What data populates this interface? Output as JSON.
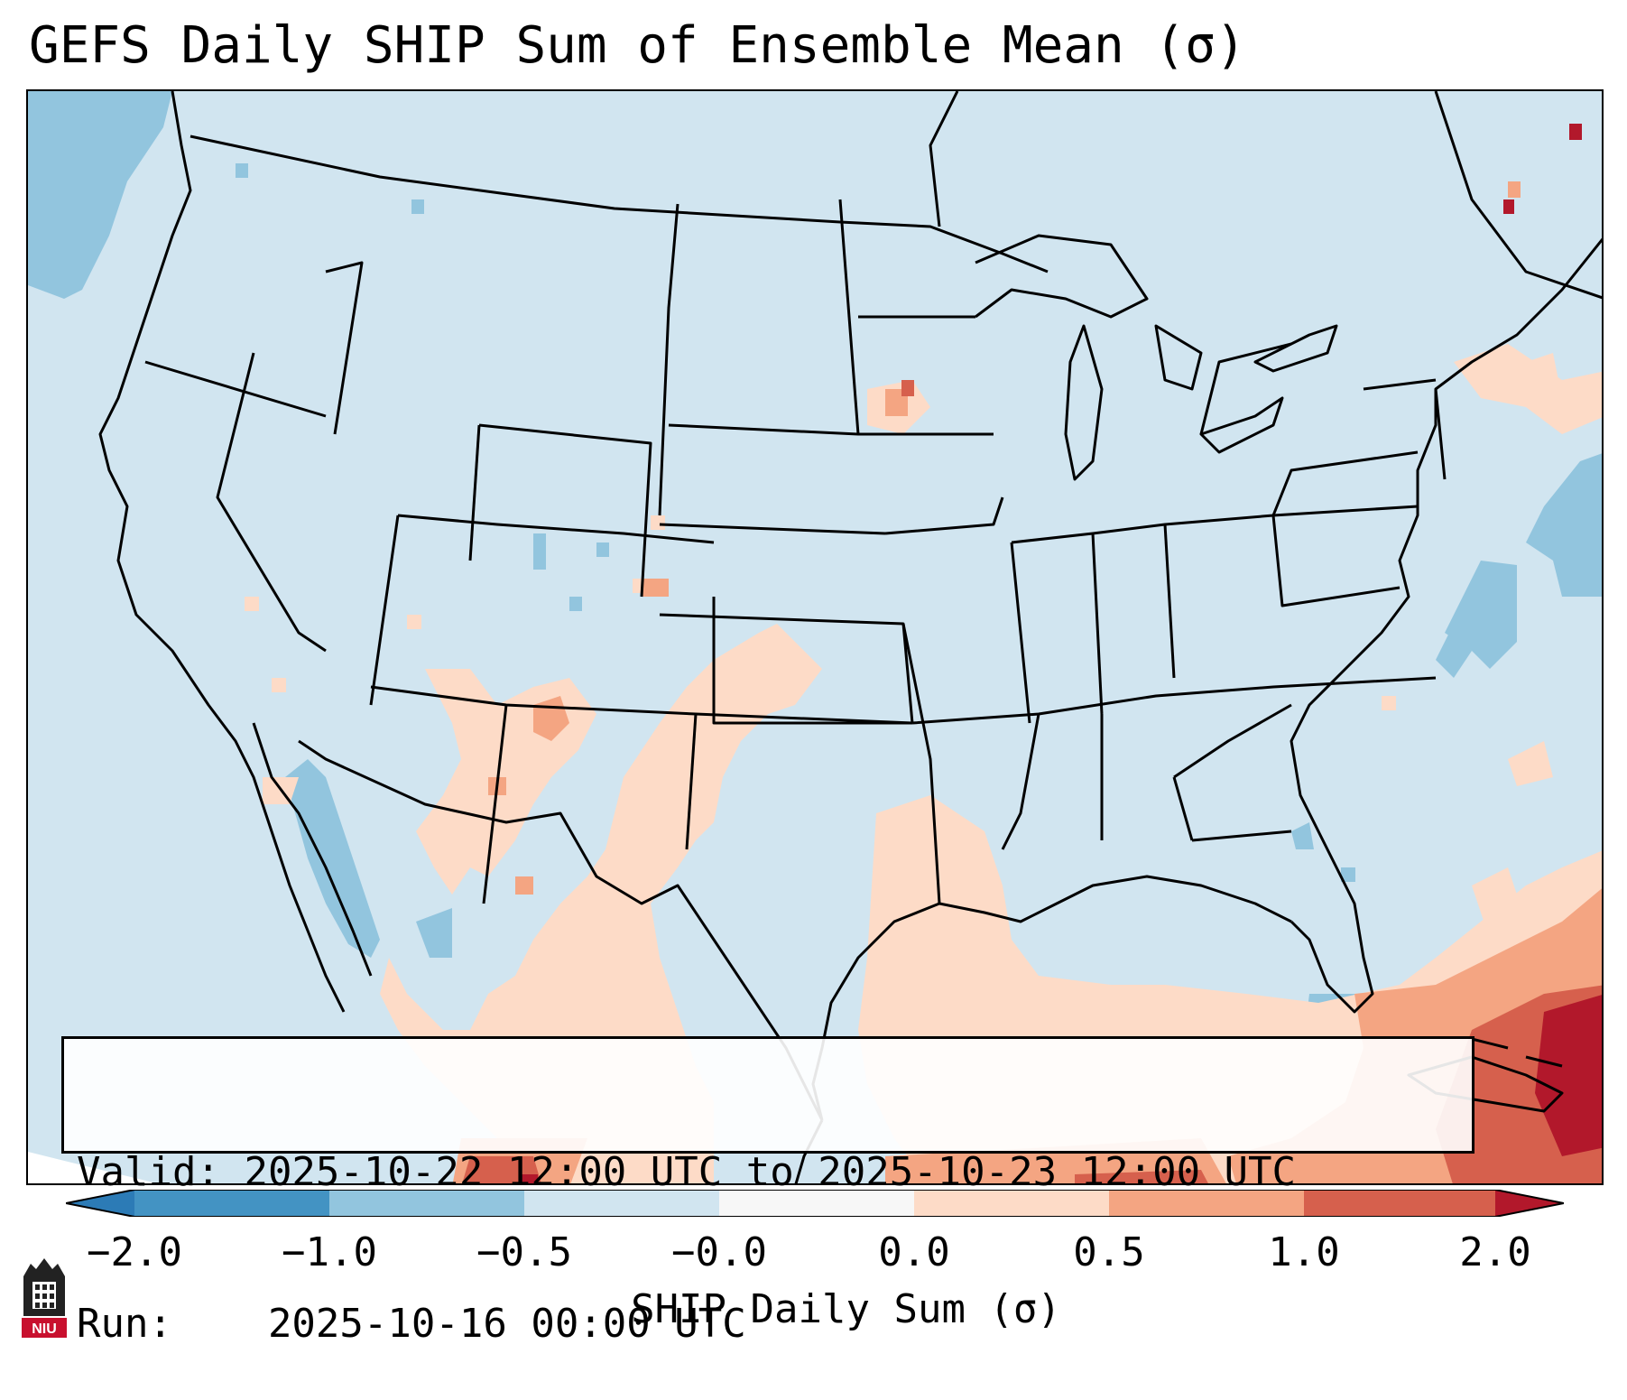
{
  "title": "GEFS Daily SHIP Sum of Ensemble Mean (σ)",
  "info": {
    "valid_label": "Valid:",
    "valid_value": "2025-10-22 12:00 UTC to 2025-10-23 12:00 UTC",
    "run_label": "Run:",
    "run_value": "2025-10-16 00:00 UTC"
  },
  "colorbar": {
    "label": "SHIP Daily Sum (σ)",
    "ticks": [
      "−2.0",
      "−1.0",
      "−0.5",
      "−0.0",
      "0.0",
      "0.5",
      "1.0",
      "2.0"
    ],
    "colors": {
      "extend_low": "#2c7bb6",
      "bin_-2_-1": "#4393c3",
      "bin_-1_-0.5": "#92c5de",
      "bin_-0.5_0": "#d1e5f0",
      "bin_0_0": "#f7f7f7",
      "bin_0_0.5": "#fddbc7",
      "bin_0.5_1": "#f4a582",
      "bin_1_2": "#d6604d",
      "extend_high": "#b2182b"
    }
  },
  "logo": {
    "text": "NIU",
    "icon": "niu-castle-logo-icon"
  }
}
